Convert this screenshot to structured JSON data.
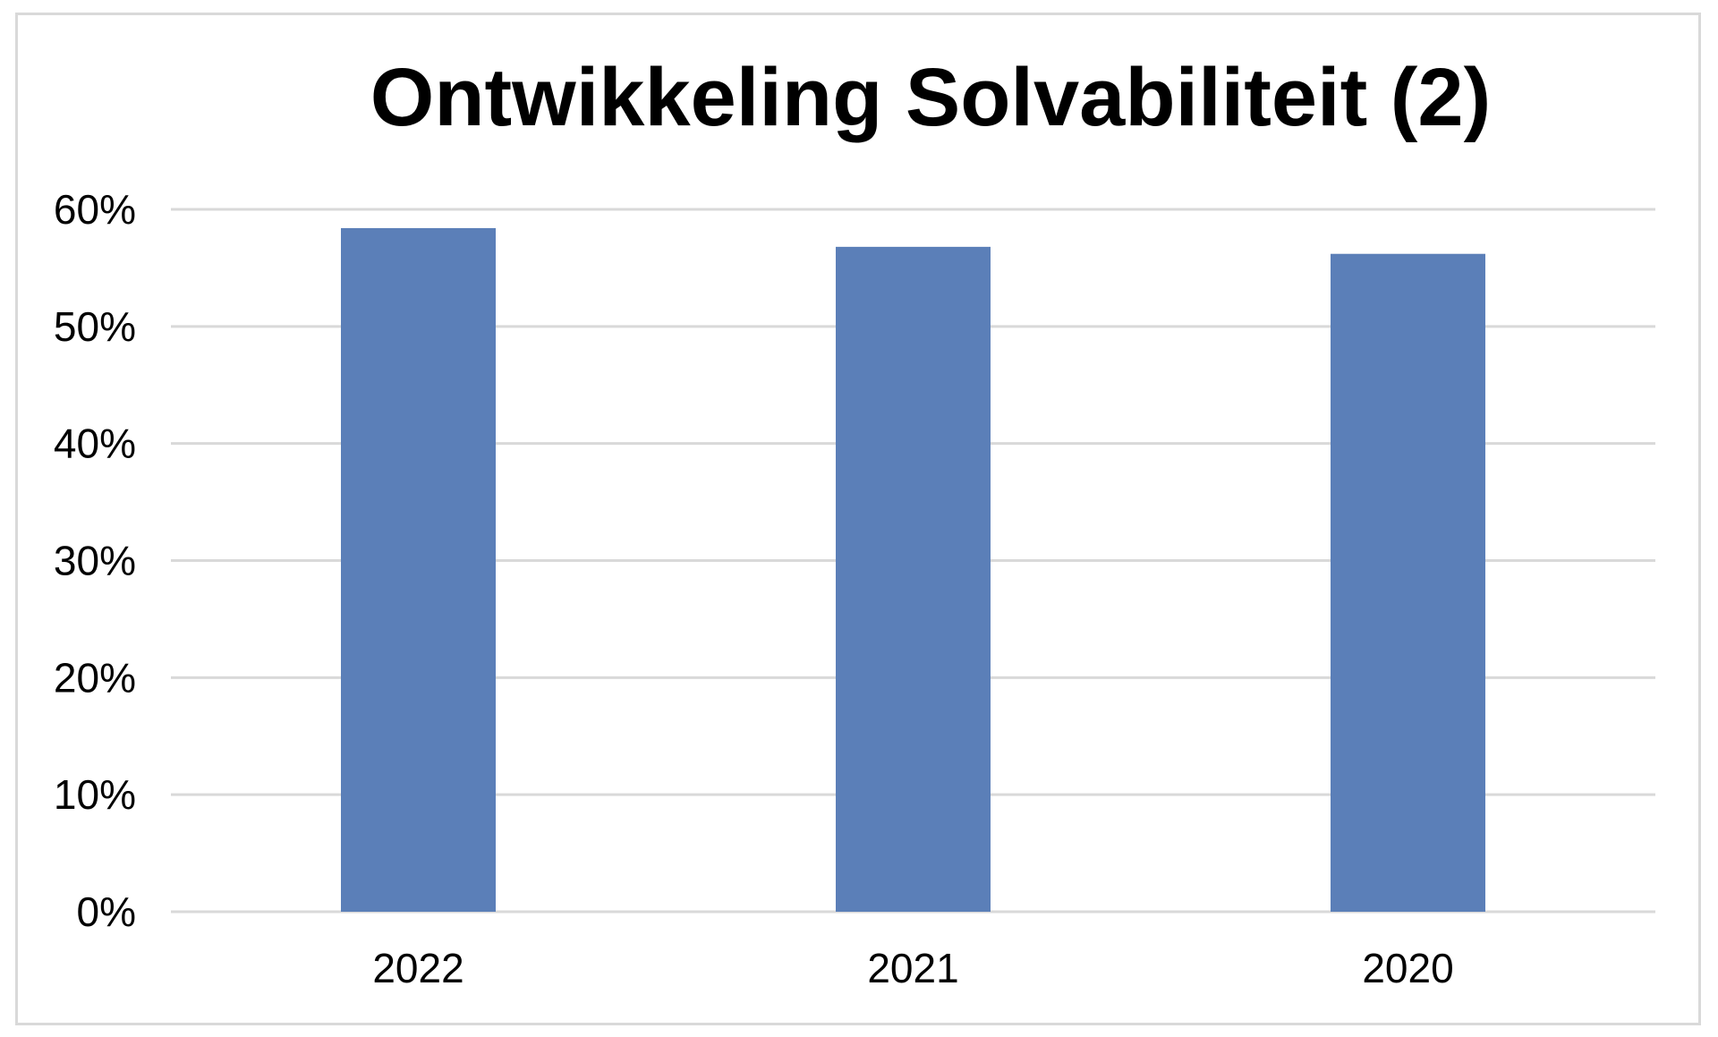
{
  "chart_data": {
    "type": "bar",
    "title": "Ontwikkeling Solvabiliteit (2)",
    "xlabel": "",
    "ylabel": "",
    "categories": [
      "2022",
      "2021",
      "2020"
    ],
    "values": [
      58.4,
      56.8,
      56.2
    ],
    "ylim": [
      0,
      60
    ],
    "y_ticks": [
      0,
      10,
      20,
      30,
      40,
      50,
      60
    ],
    "y_tick_labels": [
      "0%",
      "10%",
      "20%",
      "30%",
      "40%",
      "50%",
      "60%"
    ],
    "grid": true,
    "legend": "none",
    "colors": {
      "bar": "#5b7fb8",
      "grid": "#d9d9d9",
      "frame": "#d9d9d9"
    }
  }
}
